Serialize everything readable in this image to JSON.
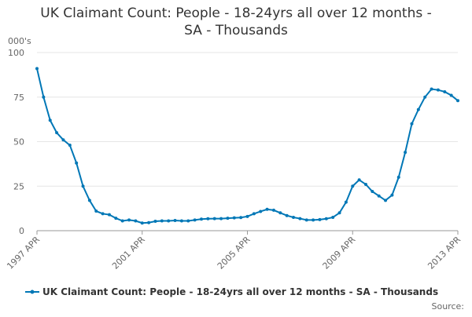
{
  "chart_data": {
    "type": "line",
    "title": [
      "UK Claimant Count: People - 18-24yrs all over 12 months -",
      "SA - Thousands"
    ],
    "y_unit": "000's",
    "source": "Source:",
    "categories": [
      "1997 APR",
      null,
      null,
      null,
      null,
      null,
      null,
      null,
      null,
      null,
      null,
      null,
      null,
      null,
      null,
      null,
      "2001 APR",
      null,
      null,
      null,
      null,
      null,
      null,
      null,
      null,
      null,
      null,
      null,
      null,
      null,
      null,
      null,
      "2005 APR",
      null,
      null,
      null,
      null,
      null,
      null,
      null,
      null,
      null,
      null,
      null,
      null,
      null,
      null,
      null,
      "2009 APR",
      null,
      null,
      null,
      null,
      null,
      null,
      null,
      null,
      null,
      null,
      null,
      null,
      null,
      null,
      null,
      "2013 APR"
    ],
    "series": [
      {
        "name": "UK Claimant Count: People - 18-24yrs all over 12 months - SA - Thousands",
        "color": "#0077b6",
        "values": [
          91,
          75,
          62,
          55,
          51,
          48,
          38,
          25,
          17,
          11,
          9.5,
          9,
          7,
          5.5,
          6,
          5.5,
          4.3,
          4.5,
          5.3,
          5.5,
          5.5,
          5.7,
          5.5,
          5.5,
          6,
          6.5,
          6.7,
          6.8,
          6.8,
          7,
          7.2,
          7.4,
          8,
          9.5,
          10.8,
          12,
          11.5,
          10,
          8.5,
          7.5,
          6.8,
          6,
          6,
          6.2,
          6.7,
          7.5,
          10,
          16,
          25,
          28.5,
          26,
          22,
          19.5,
          17,
          20,
          30,
          44,
          60,
          68,
          75,
          79.5,
          79,
          78,
          76,
          73
        ]
      }
    ],
    "ylim": [
      0,
      100
    ],
    "yticks": [
      0,
      25,
      50,
      75,
      100
    ],
    "grid": true
  }
}
